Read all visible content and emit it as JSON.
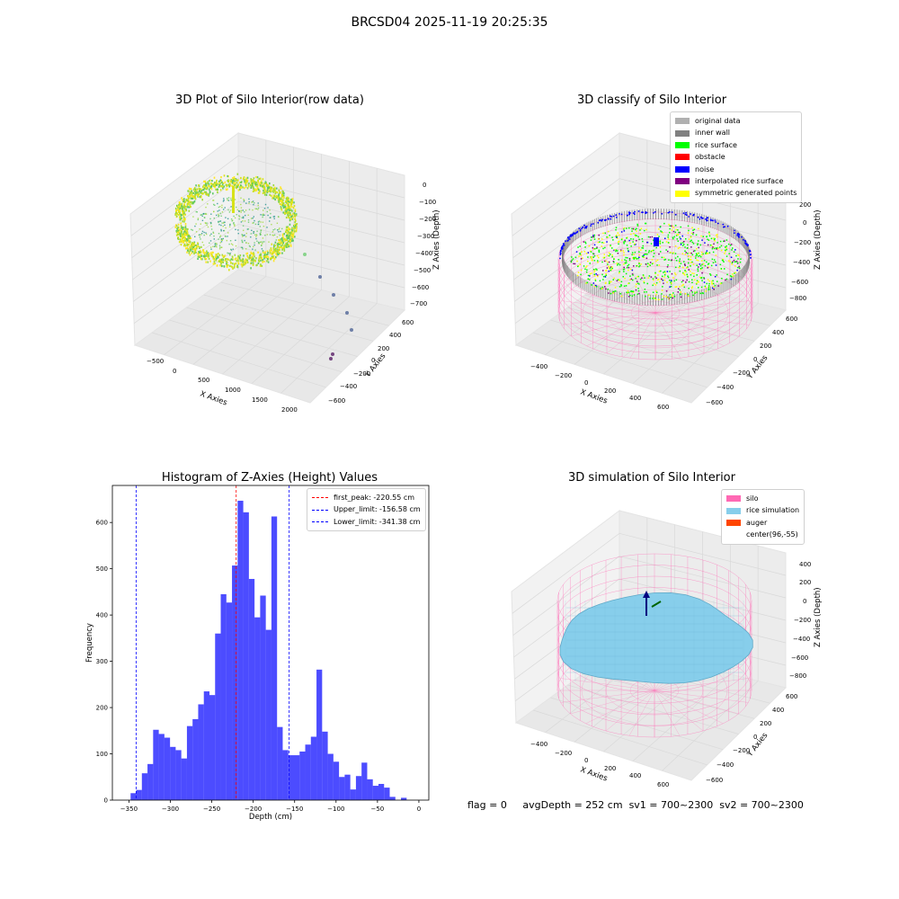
{
  "figure": {
    "suptitle": "BRCSD04 2025-11-19 20:25:35"
  },
  "colors": {
    "pane": "#f2f2f2",
    "grid": "#d9d9d9",
    "silo_pink": "#ff69b4",
    "rice_blue": "#87ceeb",
    "hist_blue": "#0000ff",
    "peak_red": "#ff0000"
  },
  "status_line": {
    "flag": "flag = 0",
    "avg_depth": "avgDepth = 252 cm",
    "sv1": "sv1 = 700~2300",
    "sv2": "sv2 = 700~2300"
  },
  "chart_data": [
    {
      "type": "scatter",
      "projection": "3d",
      "title": "3D Plot of Silo Interior(row data)",
      "xlabel": "X Axies",
      "ylabel": "Y Axies",
      "zlabel": "Z Axies (Depth)",
      "xticks": [
        "−500",
        "0",
        "500",
        "1000",
        "1500",
        "2000"
      ],
      "yticks": [
        "−600",
        "−400",
        "−200",
        "0",
        "200",
        "400",
        "600"
      ],
      "zticks": [
        "0",
        "−100",
        "−200",
        "−300",
        "−400",
        "−500",
        "−600",
        "−700"
      ],
      "colormap": "viridis",
      "description_points": "dense ring of points around x≈−500..500 plus a few outliers toward x≈1500..2000"
    },
    {
      "type": "scatter",
      "projection": "3d",
      "title": "3D classify of Silo Interior",
      "xlabel": "X Axies",
      "ylabel": "Y Axies",
      "zlabel": "Z Axies (Depth)",
      "xticks": [
        "−400",
        "−200",
        "0",
        "200",
        "400",
        "600"
      ],
      "yticks": [
        "−600",
        "−400",
        "−200",
        "0",
        "200",
        "400",
        "600"
      ],
      "zticks": [
        "200",
        "0",
        "−200",
        "−400",
        "−600",
        "−800"
      ],
      "legend": [
        {
          "label": "original data",
          "color": "#b0b0b0"
        },
        {
          "label": "inner wall",
          "color": "#808080"
        },
        {
          "label": "rice surface",
          "color": "#00ff00"
        },
        {
          "label": "obstacle",
          "color": "#ff0000"
        },
        {
          "label": "noise",
          "color": "#0000ff"
        },
        {
          "label": "interpolated rice surface",
          "color": "#800080"
        },
        {
          "label": "symmetric generated points",
          "color": "#ffff00"
        }
      ]
    },
    {
      "type": "bar",
      "title": "Histogram of Z-Axies (Height) Values",
      "xlabel": "Depth (cm)",
      "ylabel": "Frequency",
      "xlim": [
        -370,
        12
      ],
      "ylim": [
        0,
        680
      ],
      "xticks": [
        -350,
        -300,
        -250,
        -200,
        -150,
        -100,
        -50,
        0
      ],
      "xtick_labels": [
        "−350",
        "−300",
        "−250",
        "−200",
        "−150",
        "−100",
        "−50",
        "0"
      ],
      "yticks": [
        0,
        100,
        200,
        300,
        400,
        500,
        600
      ],
      "bin_width": 6.8,
      "bin_start": -348,
      "values": [
        15,
        22,
        58,
        78,
        152,
        143,
        135,
        115,
        108,
        90,
        160,
        175,
        207,
        235,
        227,
        360,
        445,
        427,
        507,
        647,
        622,
        478,
        395,
        442,
        368,
        613,
        158,
        108,
        97,
        97,
        105,
        120,
        137,
        282,
        148,
        100,
        83,
        50,
        55,
        23,
        52,
        81,
        45,
        31,
        35,
        27,
        7,
        0,
        5
      ],
      "lines": [
        {
          "label": "first_peak: -220.55 cm",
          "x": -220.55,
          "color": "#ff0000"
        },
        {
          "label": "Upper_limit: -156.58 cm",
          "x": -156.58,
          "color": "#0000ff"
        },
        {
          "label": "Lower_limit: -341.38 cm",
          "x": -341.38,
          "color": "#0000ff"
        }
      ]
    },
    {
      "type": "area",
      "projection": "3d",
      "title": "3D simulation of Silo Interior",
      "xlabel": "X Axies",
      "ylabel": "Y Axies",
      "zlabel": "Z Axies (Depth)",
      "xticks": [
        "−400",
        "−200",
        "0",
        "200",
        "400",
        "600"
      ],
      "yticks": [
        "−600",
        "−400",
        "−200",
        "0",
        "200",
        "400",
        "600"
      ],
      "zticks": [
        "400",
        "200",
        "0",
        "−200",
        "−400",
        "−600",
        "−800"
      ],
      "legend": [
        {
          "label": "silo",
          "color": "#ff69b4"
        },
        {
          "label": "rice simulation",
          "color": "#87ceeb"
        },
        {
          "label": "auger",
          "color": "#ff4500"
        },
        {
          "label": "center(96,-55)",
          "color": ""
        }
      ]
    }
  ]
}
